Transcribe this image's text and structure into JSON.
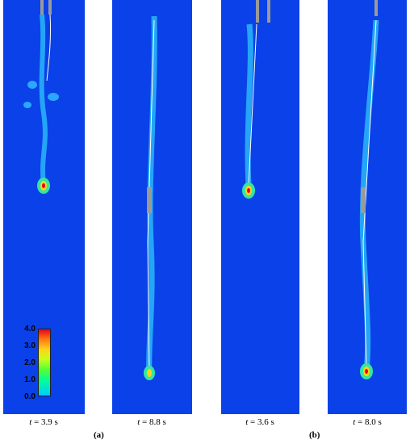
{
  "panels": [
    {
      "time_label": "t = 3.9 s",
      "var": "t",
      "value": " = 3.9 s"
    },
    {
      "time_label": "t = 8.8 s",
      "var": "t",
      "value": " = 8.8 s"
    },
    {
      "time_label": "t = 3.6 s",
      "var": "t",
      "value": " = 3.6 s"
    },
    {
      "time_label": "t = 8.0 s",
      "var": "t",
      "value": " = 8.0 s"
    }
  ],
  "group_labels": {
    "a": "(a)",
    "b": "(b)"
  },
  "colorbar": {
    "ticks": [
      "4.0",
      "3.0",
      "2.0",
      "1.0",
      "0.0"
    ],
    "colors": {
      "background": "#0a3fe6",
      "low": "#00c8ff",
      "mid": "#4dff3a",
      "high": "#e8001c"
    }
  }
}
